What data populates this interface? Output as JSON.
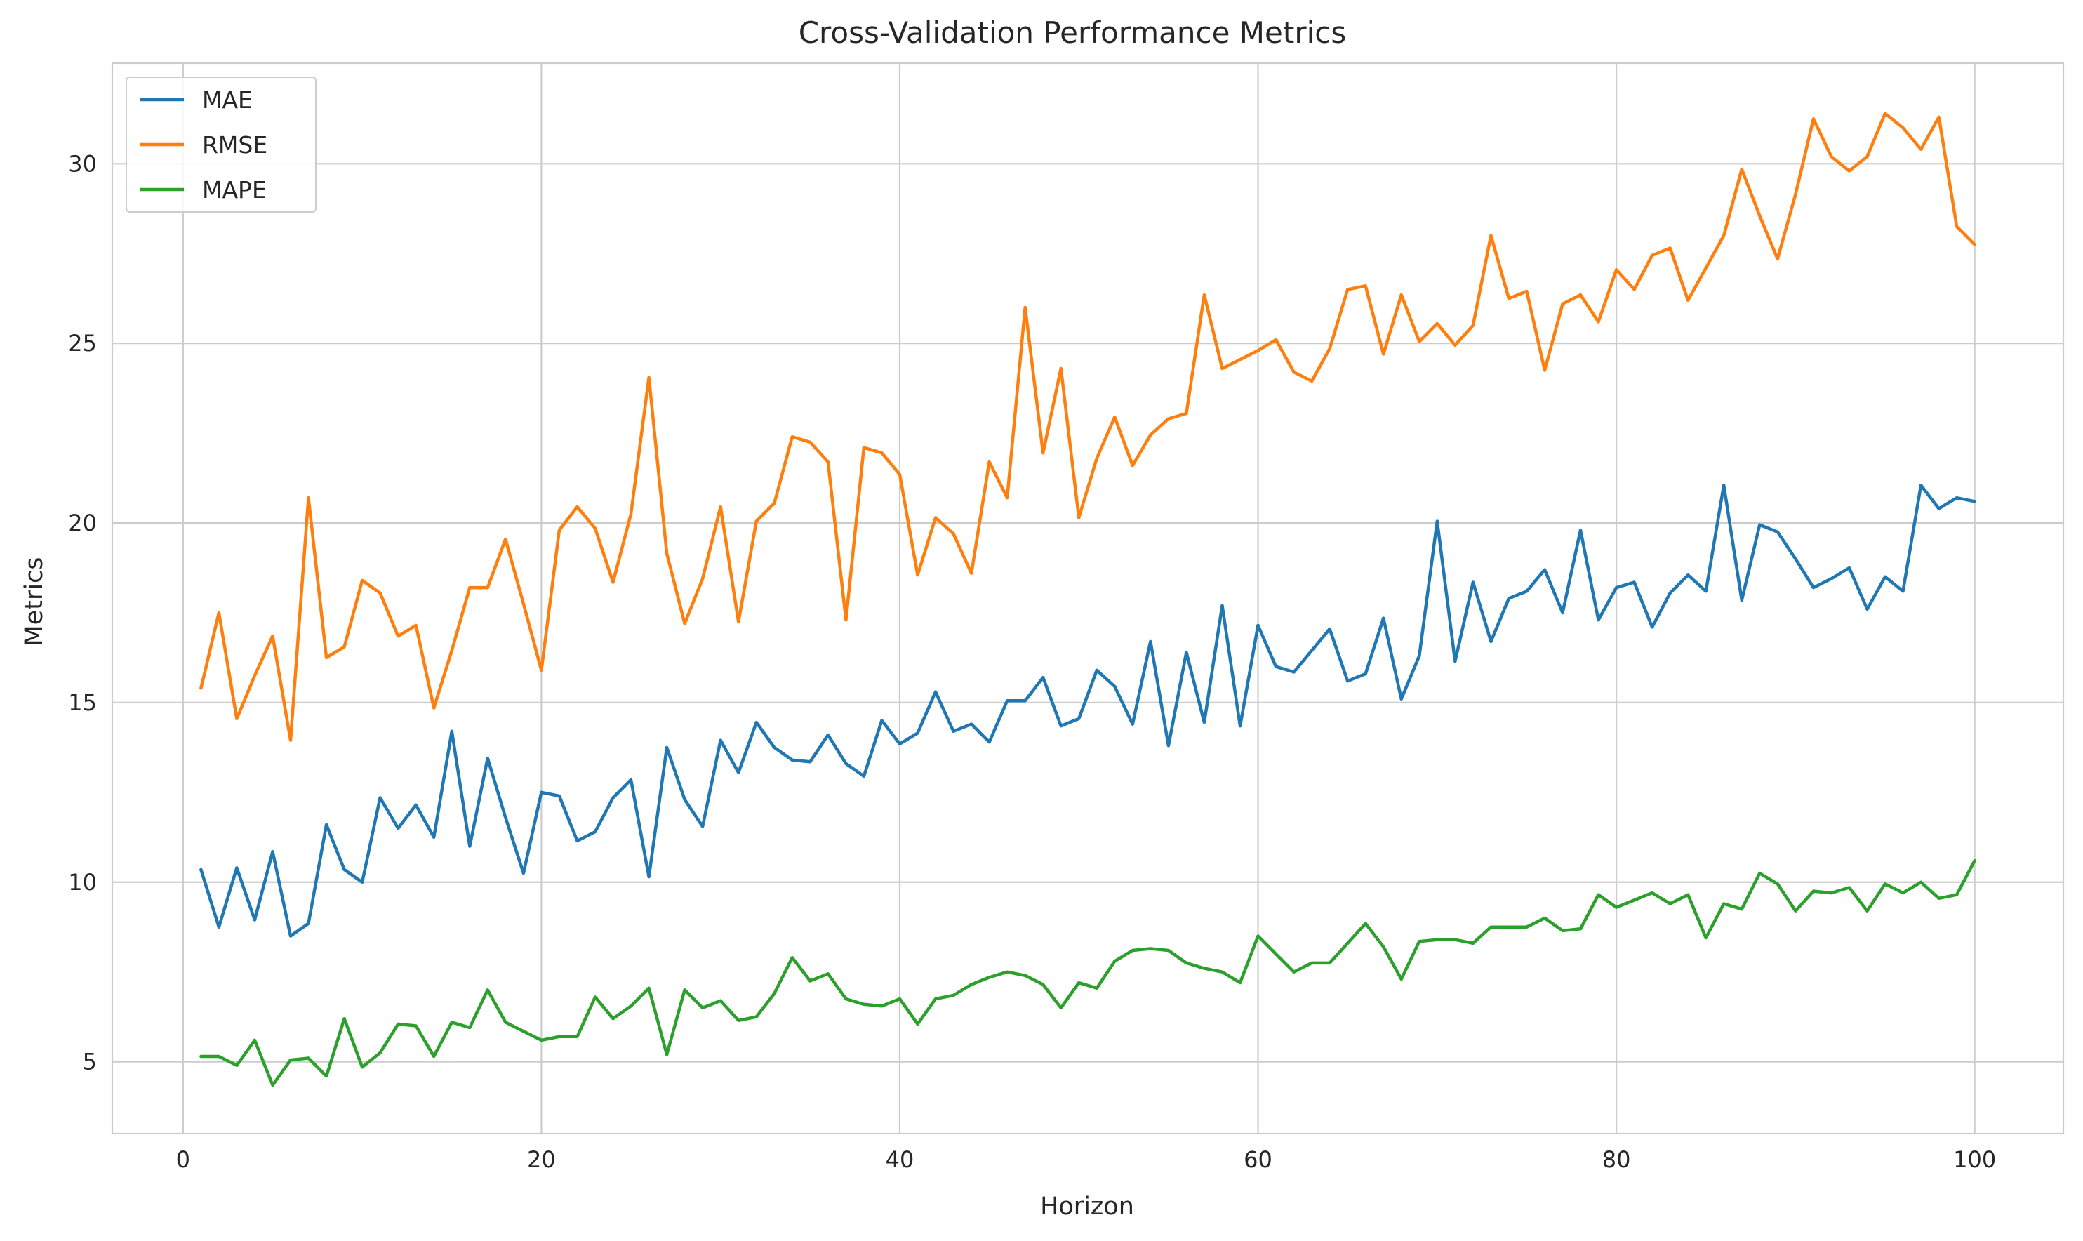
{
  "chart_data": {
    "type": "line",
    "title": "Cross-Validation Performance Metrics",
    "xlabel": "Horizon",
    "ylabel": "Metrics",
    "xlim": [
      -3.95,
      104.95
    ],
    "ylim": [
      3.0,
      32.8
    ],
    "xticks": [
      0,
      20,
      40,
      60,
      80,
      100
    ],
    "yticks": [
      5,
      10,
      15,
      20,
      25,
      30
    ],
    "grid": true,
    "legend_position": "upper-left",
    "x": [
      1,
      2,
      3,
      4,
      5,
      6,
      7,
      8,
      9,
      10,
      11,
      12,
      13,
      14,
      15,
      16,
      17,
      18,
      19,
      20,
      21,
      22,
      23,
      24,
      25,
      26,
      27,
      28,
      29,
      30,
      31,
      32,
      33,
      34,
      35,
      36,
      37,
      38,
      39,
      40,
      41,
      42,
      43,
      44,
      45,
      46,
      47,
      48,
      49,
      50,
      51,
      52,
      53,
      54,
      55,
      56,
      57,
      58,
      59,
      60,
      61,
      62,
      63,
      64,
      65,
      66,
      67,
      68,
      69,
      70,
      71,
      72,
      73,
      74,
      75,
      76,
      77,
      78,
      79,
      80,
      81,
      82,
      83,
      84,
      85,
      86,
      87,
      88,
      89,
      90,
      91,
      92,
      93,
      94,
      95,
      96,
      97,
      98,
      99,
      100
    ],
    "series": [
      {
        "name": "MAE",
        "color": "#1f77b4",
        "values": [
          10.35,
          8.75,
          10.4,
          8.95,
          10.85,
          8.5,
          8.85,
          11.6,
          10.35,
          10.0,
          12.35,
          11.5,
          12.15,
          11.25,
          14.2,
          11.0,
          13.45,
          11.8,
          10.25,
          12.5,
          12.4,
          11.15,
          11.4,
          12.35,
          12.85,
          10.15,
          13.75,
          12.3,
          11.55,
          13.95,
          13.05,
          14.45,
          13.75,
          13.4,
          13.35,
          14.1,
          13.3,
          12.95,
          14.5,
          13.85,
          14.15,
          15.3,
          14.2,
          14.4,
          13.9,
          15.05,
          15.05,
          15.7,
          14.35,
          14.55,
          15.9,
          15.45,
          14.4,
          16.7,
          13.8,
          16.4,
          14.45,
          17.7,
          14.35,
          17.15,
          16.0,
          15.85,
          16.45,
          17.05,
          15.6,
          15.8,
          17.35,
          15.1,
          16.3,
          20.05,
          16.15,
          18.35,
          16.7,
          17.9,
          18.1,
          18.7,
          17.5,
          19.8,
          17.3,
          18.2,
          18.35,
          17.1,
          18.05,
          18.55,
          18.1,
          21.05,
          17.85,
          19.95,
          19.75,
          19.0,
          18.2,
          18.45,
          18.75,
          17.6,
          18.5,
          18.1,
          21.05,
          20.4,
          20.7,
          20.6
        ]
      },
      {
        "name": "RMSE",
        "color": "#ff7f0e",
        "values": [
          15.4,
          17.5,
          14.55,
          15.75,
          16.85,
          13.95,
          20.7,
          16.25,
          16.55,
          18.4,
          18.05,
          16.85,
          17.15,
          14.85,
          16.45,
          18.2,
          18.2,
          19.55,
          17.75,
          15.9,
          19.8,
          20.45,
          19.85,
          18.35,
          20.25,
          24.05,
          19.15,
          17.2,
          18.45,
          20.45,
          17.25,
          20.05,
          20.55,
          22.4,
          22.25,
          21.7,
          17.3,
          22.1,
          21.95,
          21.35,
          18.55,
          20.15,
          19.7,
          18.6,
          21.7,
          20.7,
          26.0,
          21.95,
          24.3,
          20.15,
          21.8,
          22.95,
          21.6,
          22.45,
          22.9,
          23.05,
          26.35,
          24.3,
          24.55,
          24.8,
          25.1,
          24.2,
          23.95,
          24.85,
          26.5,
          26.6,
          24.7,
          26.35,
          25.05,
          25.55,
          24.95,
          25.5,
          28.0,
          26.25,
          26.45,
          24.25,
          26.1,
          26.35,
          25.6,
          27.05,
          26.5,
          27.45,
          27.65,
          26.2,
          27.1,
          28.0,
          29.85,
          28.55,
          27.35,
          29.15,
          31.25,
          30.2,
          29.8,
          30.2,
          31.4,
          31.0,
          30.4,
          31.3,
          28.25,
          27.75
        ]
      },
      {
        "name": "MAPE",
        "color": "#2ca02c",
        "values": [
          5.15,
          5.15,
          4.9,
          5.6,
          4.35,
          5.05,
          5.1,
          4.6,
          6.2,
          4.85,
          5.25,
          6.05,
          6.0,
          5.15,
          6.1,
          5.95,
          7.0,
          6.1,
          5.85,
          5.6,
          5.7,
          5.7,
          6.8,
          6.2,
          6.55,
          7.05,
          5.2,
          7.0,
          6.5,
          6.7,
          6.15,
          6.25,
          6.9,
          7.9,
          7.25,
          7.45,
          6.75,
          6.6,
          6.55,
          6.75,
          6.05,
          6.75,
          6.85,
          7.15,
          7.35,
          7.5,
          7.4,
          7.15,
          6.5,
          7.2,
          7.05,
          7.8,
          8.1,
          8.15,
          8.1,
          7.75,
          7.6,
          7.5,
          7.2,
          8.5,
          8.0,
          7.5,
          7.75,
          7.75,
          8.3,
          8.85,
          8.2,
          7.3,
          8.35,
          8.4,
          8.4,
          8.3,
          8.75,
          8.75,
          8.75,
          9.0,
          8.65,
          8.7,
          9.65,
          9.3,
          9.5,
          9.7,
          9.4,
          9.65,
          8.45,
          9.4,
          9.25,
          10.25,
          9.95,
          9.2,
          9.75,
          9.7,
          9.85,
          9.2,
          9.95,
          9.7,
          10.0,
          9.55,
          9.65,
          10.6
        ]
      }
    ]
  }
}
